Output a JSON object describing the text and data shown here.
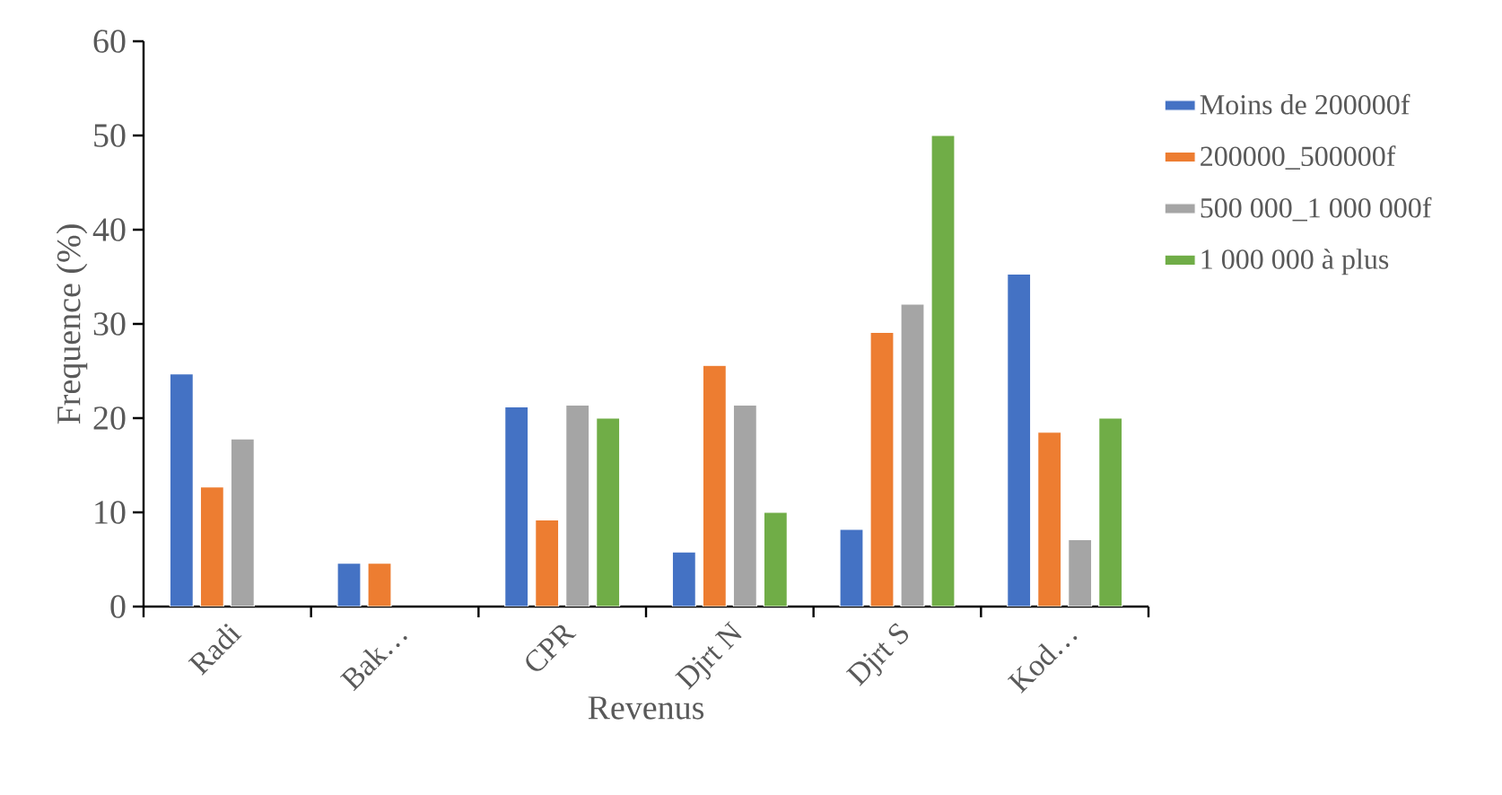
{
  "chart_data": {
    "type": "bar",
    "xlabel": "Revenus",
    "ylabel": "Frequence (%)",
    "categories": [
      "Radi",
      "Bak…",
      "CPR",
      "Djrt N",
      "Djrt S",
      "Kod…"
    ],
    "series": [
      {
        "name": "Moins de 200000f",
        "color": "#4472c4",
        "values": [
          24.7,
          4.6,
          21.2,
          5.8,
          8.2,
          35.3
        ]
      },
      {
        "name": "200000_500000f",
        "color": "#ed7d31",
        "values": [
          12.7,
          4.6,
          9.2,
          25.6,
          29.1,
          18.5
        ]
      },
      {
        "name": "500 000_1 000 000f",
        "color": "#a5a5a5",
        "values": [
          17.8,
          null,
          21.4,
          21.4,
          32.1,
          7.1
        ]
      },
      {
        "name": "1 000 000 à plus",
        "color": "#70ad47",
        "values": [
          null,
          null,
          20.0,
          10.0,
          50.0,
          20.0
        ]
      }
    ],
    "ylim": [
      0,
      60
    ],
    "yticks": [
      0,
      10,
      20,
      30,
      40,
      50,
      60
    ],
    "legend": "right",
    "grid": false
  }
}
